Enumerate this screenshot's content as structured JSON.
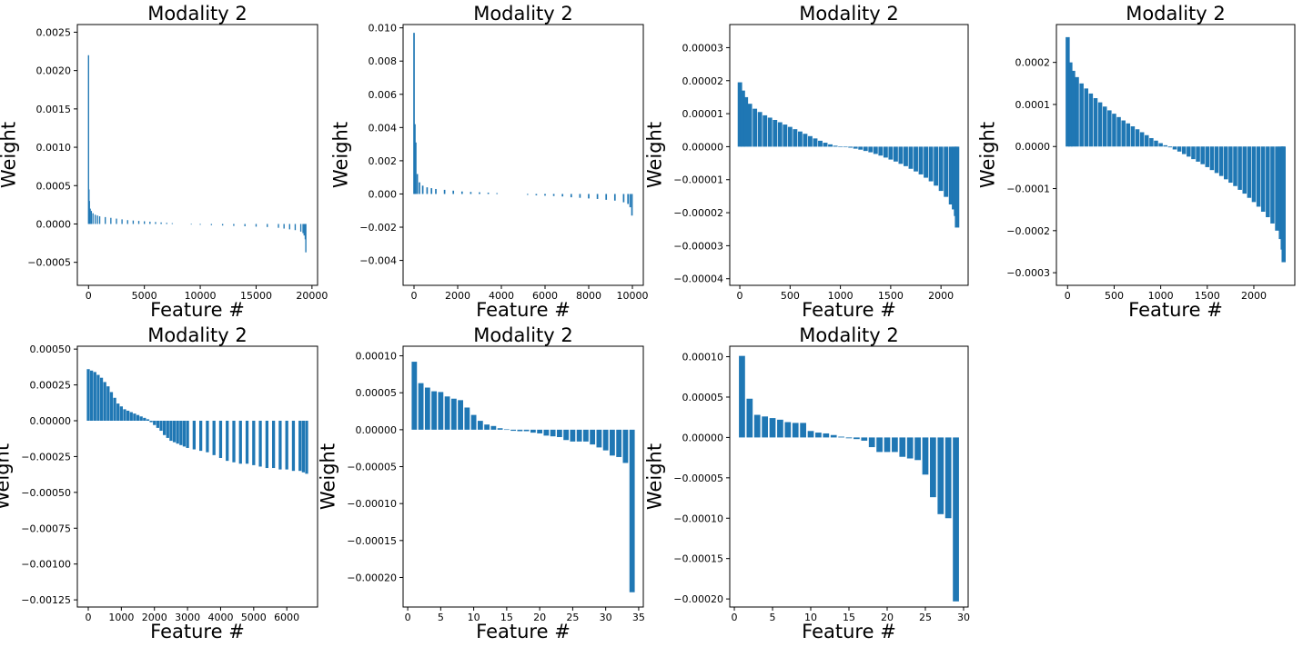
{
  "colors": {
    "bar": "#1f77b4",
    "axes": "#000000",
    "background": "#ffffff"
  },
  "chart_data": [
    {
      "type": "bar",
      "title": "Modality 2",
      "xlabel": "Feature #",
      "ylabel": "Weight",
      "xlim": [
        -1000,
        20500
      ],
      "ylim": [
        -0.0008,
        0.0026
      ],
      "xticks": [
        0,
        5000,
        10000,
        15000,
        20000
      ],
      "xtick_labels": [
        "0",
        "5000",
        "10000",
        "15000",
        "20000"
      ],
      "yticks": [
        -0.0005,
        0,
        0.0005,
        0.001,
        0.0015,
        0.002,
        0.0025
      ],
      "ytick_labels": [
        "−0.0005",
        "0.0000",
        "0.0005",
        "0.0010",
        "0.0015",
        "0.0020",
        "0.0025"
      ],
      "x": [
        1,
        40,
        80,
        150,
        250,
        400,
        600,
        800,
        1000,
        1500,
        2000,
        2500,
        3000,
        3500,
        4000,
        4500,
        5000,
        5500,
        6000,
        6500,
        7000,
        7500,
        9200,
        10000,
        11000,
        12000,
        13000,
        14000,
        15000,
        16000,
        17000,
        17500,
        18000,
        18500,
        19000,
        19200,
        19300,
        19400,
        19450
      ],
      "values": [
        0.0022,
        0.00045,
        0.0003,
        0.0002,
        0.00017,
        0.00014,
        0.00012,
        0.00011,
        0.0001,
        9e-05,
        8e-05,
        7e-05,
        6e-05,
        5e-05,
        4.5e-05,
        4e-05,
        3.5e-05,
        3e-05,
        2.5e-05,
        2e-05,
        1.5e-05,
        1e-05,
        -5e-06,
        -1e-05,
        -1.5e-05,
        -2e-05,
        -2.5e-05,
        -3e-05,
        -3.5e-05,
        -4e-05,
        -5e-05,
        -6e-05,
        -7e-05,
        -8e-05,
        -0.0001,
        -0.00012,
        -0.00015,
        -0.0002,
        -0.00037
      ],
      "bar_width": 110
    },
    {
      "type": "bar",
      "title": "Modality 2",
      "xlabel": "Feature #",
      "ylabel": "Weight",
      "xlim": [
        -500,
        10500
      ],
      "ylim": [
        -0.0055,
        0.0102
      ],
      "xticks": [
        0,
        2000,
        4000,
        6000,
        8000,
        10000
      ],
      "xtick_labels": [
        "0",
        "2000",
        "4000",
        "6000",
        "8000",
        "10000"
      ],
      "yticks": [
        -0.004,
        -0.002,
        0,
        0.002,
        0.004,
        0.006,
        0.008,
        0.01
      ],
      "ytick_labels": [
        "−0.004",
        "−0.002",
        "0.000",
        "0.002",
        "0.004",
        "0.006",
        "0.008",
        "0.010"
      ],
      "x": [
        1,
        40,
        80,
        150,
        250,
        400,
        600,
        800,
        1000,
        1400,
        1800,
        2200,
        2600,
        3000,
        3400,
        3800,
        5200,
        5600,
        6000,
        6400,
        6800,
        7200,
        7600,
        8000,
        8400,
        8800,
        9200,
        9600,
        9800,
        9900,
        9980
      ],
      "values": [
        0.0097,
        0.0042,
        0.0031,
        0.0012,
        0.0007,
        0.0005,
        0.0004,
        0.00035,
        0.0003,
        0.00025,
        0.0002,
        0.00015,
        0.00012,
        0.0001,
        8e-05,
        5e-05,
        -5e-05,
        -8e-05,
        -0.0001,
        -0.00012,
        -0.00015,
        -0.0002,
        -0.00023,
        -0.00027,
        -0.0003,
        -0.00035,
        -0.0004,
        -0.0005,
        -0.0006,
        -0.0008,
        -0.0013
      ],
      "bar_width": 70
    },
    {
      "type": "bar",
      "title": "Modality 2",
      "xlabel": "Feature #",
      "ylabel": "Weight",
      "xlim": [
        -100,
        2270
      ],
      "ylim": [
        -4.2e-05,
        3.7e-05
      ],
      "xticks": [
        0,
        500,
        1000,
        1500,
        2000
      ],
      "xtick_labels": [
        "0",
        "500",
        "1000",
        "1500",
        "2000"
      ],
      "yticks": [
        -4e-05,
        -3e-05,
        -2e-05,
        -1e-05,
        0,
        1e-05,
        2e-05,
        3e-05
      ],
      "ytick_labels": [
        "−0.00004",
        "−0.00003",
        "−0.00002",
        "−0.00001",
        "0.00000",
        "0.00001",
        "0.00002",
        "0.00003"
      ],
      "x": [
        1,
        30,
        60,
        100,
        150,
        200,
        250,
        300,
        350,
        400,
        450,
        500,
        550,
        600,
        650,
        700,
        750,
        800,
        850,
        900,
        950,
        1000,
        1050,
        1100,
        1150,
        1200,
        1250,
        1300,
        1350,
        1400,
        1450,
        1500,
        1550,
        1600,
        1650,
        1700,
        1750,
        1800,
        1850,
        1900,
        1950,
        2000,
        2050,
        2100,
        2130,
        2150,
        2160
      ],
      "values": [
        1.95e-05,
        1.7e-05,
        1.5e-05,
        1.3e-05,
        1.15e-05,
        1.05e-05,
        9.5e-06,
        8.8e-06,
        8.1e-06,
        7.4e-06,
        6.7e-06,
        6e-06,
        5.3e-06,
        4.6e-06,
        3.9e-06,
        3.2e-06,
        2.5e-06,
        1.8e-06,
        1.2e-06,
        7e-07,
        3e-07,
        1e-07,
        -1e-07,
        -3e-07,
        -6e-07,
        -9e-07,
        -1.3e-06,
        -1.7e-06,
        -2.2e-06,
        -2.7e-06,
        -3.3e-06,
        -3.9e-06,
        -4.5e-06,
        -5.2e-06,
        -5.9e-06,
        -6.7e-06,
        -7.5e-06,
        -8.4e-06,
        -9.4e-06,
        -1.05e-05,
        -1.18e-05,
        -1.34e-05,
        -1.52e-05,
        -1.75e-05,
        -1.9e-05,
        -2.1e-05,
        -2.45e-05
      ],
      "bar_width": 44
    },
    {
      "type": "bar",
      "title": "Modality 2",
      "xlabel": "Feature #",
      "ylabel": "Weight",
      "xlim": [
        -120,
        2440
      ],
      "ylim": [
        -0.00033,
        0.00029
      ],
      "xticks": [
        0,
        500,
        1000,
        1500,
        2000
      ],
      "xtick_labels": [
        "0",
        "500",
        "1000",
        "1500",
        "2000"
      ],
      "yticks": [
        -0.0003,
        -0.0002,
        -0.0001,
        0,
        0.0001,
        0.0002
      ],
      "ytick_labels": [
        "−0.0003",
        "−0.0002",
        "−0.0001",
        "0.0000",
        "0.0001",
        "0.0002"
      ],
      "x": [
        1,
        30,
        60,
        100,
        150,
        200,
        250,
        300,
        350,
        400,
        450,
        500,
        550,
        600,
        650,
        700,
        750,
        800,
        850,
        900,
        950,
        1000,
        1050,
        1100,
        1150,
        1200,
        1250,
        1300,
        1350,
        1400,
        1450,
        1500,
        1550,
        1600,
        1650,
        1700,
        1750,
        1800,
        1850,
        1900,
        1950,
        2000,
        2050,
        2100,
        2150,
        2200,
        2250,
        2290,
        2310,
        2320
      ],
      "values": [
        0.00026,
        0.0002,
        0.00018,
        0.000165,
        0.00015,
        0.000138,
        0.000126,
        0.000115,
        0.000105,
        9.5e-05,
        8.6e-05,
        7.8e-05,
        7e-05,
        6.2e-05,
        5.5e-05,
        4.8e-05,
        4.1e-05,
        3.4e-05,
        2.7e-05,
        2e-05,
        1.4e-05,
        8e-06,
        3e-06,
        -2e-06,
        -7e-06,
        -1.2e-05,
        -1.8e-05,
        -2.4e-05,
        -3e-05,
        -3.6e-05,
        -4.2e-05,
        -4.9e-05,
        -5.6e-05,
        -6.3e-05,
        -7e-05,
        -7.8e-05,
        -8.6e-05,
        -9.4e-05,
        -0.000103,
        -0.000112,
        -0.000122,
        -0.000132,
        -0.000143,
        -0.000155,
        -0.000168,
        -0.000183,
        -0.0002,
        -0.00022,
        -0.000245,
        -0.000275
      ],
      "bar_width": 44
    },
    {
      "type": "bar",
      "title": "Modality 2",
      "xlabel": "Feature #",
      "ylabel": "Weight",
      "xlim": [
        -330,
        6930
      ],
      "ylim": [
        -0.0013,
        0.00052
      ],
      "xticks": [
        0,
        1000,
        2000,
        3000,
        4000,
        5000,
        6000
      ],
      "xtick_labels": [
        "0",
        "1000",
        "2000",
        "3000",
        "4000",
        "5000",
        "6000"
      ],
      "yticks": [
        -0.00125,
        -0.001,
        -0.00075,
        -0.0005,
        -0.00025,
        0,
        0.00025,
        0.0005
      ],
      "ytick_labels": [
        "−0.00125",
        "−0.00100",
        "−0.00075",
        "−0.00050",
        "−0.00025",
        "0.00000",
        "0.00025",
        "0.00050"
      ],
      "x": [
        1,
        100,
        200,
        300,
        400,
        500,
        600,
        700,
        800,
        900,
        1000,
        1100,
        1200,
        1300,
        1400,
        1500,
        1600,
        1700,
        1800,
        1900,
        2000,
        2100,
        2200,
        2300,
        2400,
        2500,
        2600,
        2700,
        2800,
        2900,
        3000,
        3200,
        3400,
        3600,
        3800,
        4000,
        4200,
        4400,
        4600,
        4800,
        5000,
        5200,
        5400,
        5600,
        5800,
        6000,
        6200,
        6400,
        6500,
        6600
      ],
      "values": [
        0.00036,
        0.00035,
        0.00034,
        0.00032,
        0.0003,
        0.00027,
        0.00024,
        0.0002,
        0.00016,
        0.00012,
        0.0001,
        8e-05,
        7e-05,
        6e-05,
        5e-05,
        4e-05,
        3e-05,
        2e-05,
        1e-05,
        -1e-05,
        -3e-05,
        -5e-05,
        -7e-05,
        -0.0001,
        -0.00012,
        -0.00014,
        -0.00015,
        -0.00016,
        -0.00017,
        -0.00018,
        -0.00019,
        -0.0002,
        -0.00021,
        -0.00022,
        -0.00024,
        -0.00026,
        -0.00028,
        -0.00029,
        -0.0003,
        -0.0003,
        -0.00031,
        -0.00032,
        -0.00033,
        -0.00033,
        -0.00034,
        -0.00034,
        -0.00035,
        -0.00035,
        -0.00036,
        -0.00037
      ],
      "bar_width": 90
    },
    {
      "type": "bar",
      "title": "Modality 2",
      "xlabel": "Feature #",
      "ylabel": "Weight",
      "xlim": [
        -0.7,
        35.7
      ],
      "ylim": [
        -0.00024,
        0.000113
      ],
      "xticks": [
        0,
        5,
        10,
        15,
        20,
        25,
        30,
        35
      ],
      "xtick_labels": [
        "0",
        "5",
        "10",
        "15",
        "20",
        "25",
        "30",
        "35"
      ],
      "yticks": [
        -0.0002,
        -0.00015,
        -0.0001,
        -5e-05,
        0,
        5e-05,
        0.0001
      ],
      "ytick_labels": [
        "−0.00020",
        "−0.00015",
        "−0.00010",
        "−0.00005",
        "0.00000",
        "0.00005",
        "0.00010"
      ],
      "x": [
        1,
        2,
        3,
        4,
        5,
        6,
        7,
        8,
        9,
        10,
        11,
        12,
        13,
        14,
        15,
        16,
        17,
        18,
        19,
        20,
        21,
        22,
        23,
        24,
        25,
        26,
        27,
        28,
        29,
        30,
        31,
        32,
        33,
        34
      ],
      "values": [
        9.2e-05,
        6.3e-05,
        5.7e-05,
        5.2e-05,
        5.1e-05,
        4.5e-05,
        4.2e-05,
        4e-05,
        3e-05,
        2e-05,
        1.2e-05,
        7e-06,
        5e-06,
        2e-06,
        5e-07,
        -1.5e-06,
        -2e-06,
        -2e-06,
        -4e-06,
        -5e-06,
        -8e-06,
        -9e-06,
        -1e-05,
        -1.4e-05,
        -1.6e-05,
        -1.6e-05,
        -1.6e-05,
        -2e-05,
        -2.4e-05,
        -2.8e-05,
        -3.5e-05,
        -3.7e-05,
        -4.5e-05,
        -0.00022
      ],
      "bar_width": 0.8
    },
    {
      "type": "bar",
      "title": "Modality 2",
      "xlabel": "Feature #",
      "ylabel": "Weight",
      "xlim": [
        -0.6,
        30.6
      ],
      "ylim": [
        -0.00021,
        0.000113
      ],
      "xticks": [
        0,
        5,
        10,
        15,
        20,
        25,
        30
      ],
      "xtick_labels": [
        "0",
        "5",
        "10",
        "15",
        "20",
        "25",
        "30"
      ],
      "yticks": [
        -0.0002,
        -0.00015,
        -0.0001,
        -5e-05,
        0,
        5e-05,
        0.0001
      ],
      "ytick_labels": [
        "−0.00020",
        "−0.00015",
        "−0.00010",
        "−0.00005",
        "0.00000",
        "0.00005",
        "0.00010"
      ],
      "x": [
        1,
        2,
        3,
        4,
        5,
        6,
        7,
        8,
        9,
        10,
        11,
        12,
        13,
        14,
        15,
        16,
        17,
        18,
        19,
        20,
        21,
        22,
        23,
        24,
        25,
        26,
        27,
        28,
        29
      ],
      "values": [
        0.000101,
        4.8e-05,
        2.8e-05,
        2.6e-05,
        2.4e-05,
        2.2e-05,
        1.9e-05,
        1.8e-05,
        1.8e-05,
        8e-06,
        6e-06,
        5e-06,
        3e-06,
        1e-06,
        -1e-06,
        -2e-06,
        -4e-06,
        -1.2e-05,
        -1.8e-05,
        -1.8e-05,
        -1.8e-05,
        -2.4e-05,
        -2.6e-05,
        -2.8e-05,
        -4.6e-05,
        -7.4e-05,
        -9.5e-05,
        -0.0001,
        -0.000203
      ],
      "bar_width": 0.8
    }
  ]
}
